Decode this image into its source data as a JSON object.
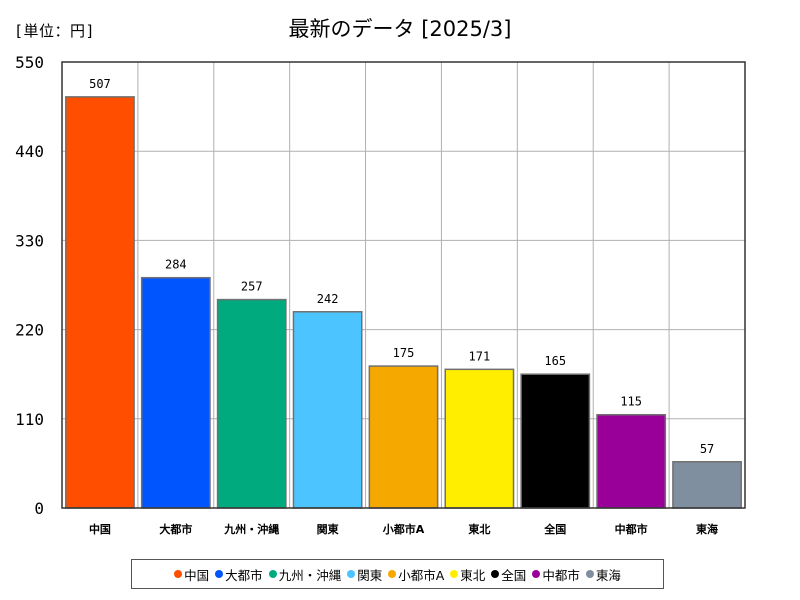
{
  "header": {
    "unit_label": "[単位：円]",
    "title": "最新のデータ [2025/3]"
  },
  "chart_data": {
    "type": "bar",
    "title": "最新のデータ [2025/3]",
    "ylabel": "",
    "xlabel": "",
    "ylim": [
      0,
      550
    ],
    "yticks": [
      "0",
      "110",
      "220",
      "330",
      "440",
      "550"
    ],
    "ytick_values": [
      0,
      110,
      220,
      330,
      440,
      550
    ],
    "categories": [
      "中国",
      "大都市",
      "九州・沖縄",
      "関東",
      "小都市A",
      "東北",
      "全国",
      "中都市",
      "東海"
    ],
    "values": [
      507,
      284,
      257,
      242,
      175,
      171,
      165,
      115,
      57
    ],
    "value_labels": [
      "507",
      "284",
      "257",
      "242",
      "175",
      "171",
      "165",
      "115",
      "57"
    ],
    "colors": [
      "#ff4e00",
      "#0055ff",
      "#00aa7f",
      "#4cc4ff",
      "#f5a800",
      "#ffee00",
      "#000000",
      "#990099",
      "#7f8f9f"
    ],
    "grid": true,
    "legend_position": "bottom"
  },
  "legend": {
    "items": [
      {
        "label": "中国",
        "color": "#ff4e00"
      },
      {
        "label": "大都市",
        "color": "#0055ff"
      },
      {
        "label": "九州・沖縄",
        "color": "#00aa7f"
      },
      {
        "label": "関東",
        "color": "#4cc4ff"
      },
      {
        "label": "小都市A",
        "color": "#f5a800"
      },
      {
        "label": "東北",
        "color": "#ffee00"
      },
      {
        "label": "全国",
        "color": "#000000"
      },
      {
        "label": "中都市",
        "color": "#990099"
      },
      {
        "label": "東海",
        "color": "#7f8f9f"
      }
    ]
  }
}
